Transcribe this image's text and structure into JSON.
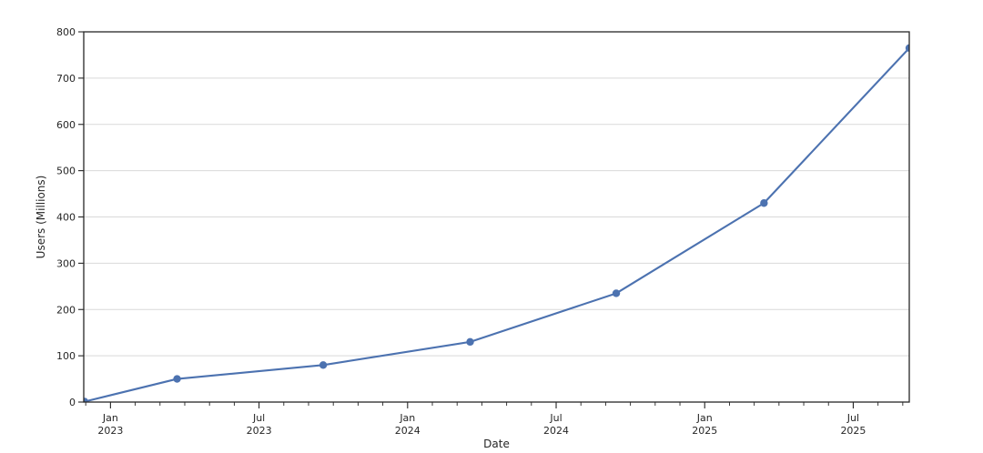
{
  "chart_data": {
    "type": "line",
    "xlabel": "Date",
    "ylabel": "Users (Millions)",
    "ylim": [
      0,
      800
    ],
    "y_ticks": [
      0,
      100,
      200,
      300,
      400,
      500,
      600,
      700,
      800
    ],
    "x_range": {
      "start": "2022-11-29",
      "end": "2025-09-09"
    },
    "x_major_ticks": [
      {
        "month": "Jan",
        "year": "2023"
      },
      {
        "month": "Jul",
        "year": "2023"
      },
      {
        "month": "Jan",
        "year": "2024"
      },
      {
        "month": "Jul",
        "year": "2024"
      },
      {
        "month": "Jan",
        "year": "2025"
      },
      {
        "month": "Jul",
        "year": "2025"
      }
    ],
    "x_minor_ticks": "monthly",
    "grid": "horizontal",
    "legend": "none",
    "series": [
      {
        "name": "users",
        "color": "#4C72B0",
        "marker": "circle",
        "points": [
          {
            "date": "2022-11-30",
            "value": 1
          },
          {
            "date": "2023-03-22",
            "value": 50
          },
          {
            "date": "2023-09-19",
            "value": 80
          },
          {
            "date": "2024-03-17",
            "value": 130
          },
          {
            "date": "2024-09-14",
            "value": 235
          },
          {
            "date": "2025-03-13",
            "value": 430
          },
          {
            "date": "2025-09-09",
            "value": 765
          }
        ]
      }
    ],
    "colors": {
      "line": "#4C72B0",
      "grid": "#d9d9d9",
      "spine": "#262626",
      "tick": "#262626",
      "text": "#262626",
      "background": "#ffffff"
    }
  }
}
